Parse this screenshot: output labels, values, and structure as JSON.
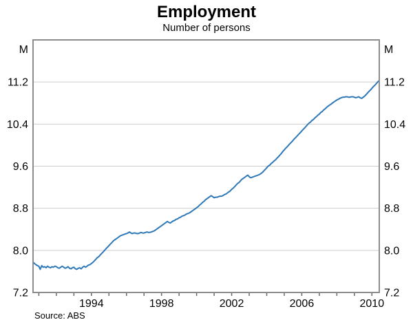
{
  "chart": {
    "title": "Employment",
    "subtitle": "Number of persons",
    "source": "Source: ABS",
    "unit_left": "M",
    "unit_right": "M"
  },
  "colors": {
    "line": "#2e78b8",
    "grid": "#cdcdcd",
    "frame": "#8c8c8c",
    "tick": "#666666",
    "text": "#000000"
  },
  "chart_data": {
    "type": "line",
    "title": "Employment",
    "subtitle": "Number of persons",
    "source": "Source: ABS",
    "ylabel": "M",
    "ylim": [
      7.2,
      12.0
    ],
    "yticks": [
      7.2,
      8.0,
      8.8,
      9.6,
      10.4,
      11.2
    ],
    "grid": "horizontal",
    "legend": "none",
    "xlim": [
      1990.67,
      2010.42
    ],
    "xticks_years": [
      1991,
      1992,
      1993,
      1994,
      1995,
      1996,
      1997,
      1998,
      1999,
      2000,
      2001,
      2002,
      2003,
      2004,
      2005,
      2006,
      2007,
      2008,
      2009,
      2010
    ],
    "xtick_labels": [
      "1994",
      "1998",
      "2002",
      "2006",
      "2010"
    ],
    "xtick_label_years": [
      1994,
      1998,
      2002,
      2006,
      2010
    ],
    "series": [
      {
        "name": "Employment, number of persons (millions)",
        "points": [
          [
            1990.67,
            7.78
          ],
          [
            1990.75,
            7.75
          ],
          [
            1990.83,
            7.73
          ],
          [
            1990.92,
            7.71
          ],
          [
            1991.0,
            7.7
          ],
          [
            1991.08,
            7.64
          ],
          [
            1991.17,
            7.71
          ],
          [
            1991.25,
            7.68
          ],
          [
            1991.33,
            7.69
          ],
          [
            1991.42,
            7.67
          ],
          [
            1991.5,
            7.7
          ],
          [
            1991.58,
            7.68
          ],
          [
            1991.67,
            7.67
          ],
          [
            1991.75,
            7.69
          ],
          [
            1991.83,
            7.68
          ],
          [
            1991.92,
            7.7
          ],
          [
            1992.0,
            7.69
          ],
          [
            1992.08,
            7.67
          ],
          [
            1992.17,
            7.66
          ],
          [
            1992.25,
            7.68
          ],
          [
            1992.33,
            7.7
          ],
          [
            1992.42,
            7.68
          ],
          [
            1992.5,
            7.66
          ],
          [
            1992.58,
            7.67
          ],
          [
            1992.67,
            7.69
          ],
          [
            1992.75,
            7.66
          ],
          [
            1992.83,
            7.65
          ],
          [
            1992.92,
            7.67
          ],
          [
            1993.0,
            7.68
          ],
          [
            1993.08,
            7.65
          ],
          [
            1993.17,
            7.64
          ],
          [
            1993.25,
            7.66
          ],
          [
            1993.33,
            7.67
          ],
          [
            1993.42,
            7.65
          ],
          [
            1993.5,
            7.68
          ],
          [
            1993.58,
            7.7
          ],
          [
            1993.67,
            7.68
          ],
          [
            1993.75,
            7.7
          ],
          [
            1993.83,
            7.72
          ],
          [
            1993.92,
            7.73
          ],
          [
            1994.0,
            7.75
          ],
          [
            1994.08,
            7.77
          ],
          [
            1994.17,
            7.8
          ],
          [
            1994.25,
            7.83
          ],
          [
            1994.33,
            7.86
          ],
          [
            1994.42,
            7.88
          ],
          [
            1994.5,
            7.91
          ],
          [
            1994.58,
            7.94
          ],
          [
            1994.67,
            7.97
          ],
          [
            1994.75,
            8.0
          ],
          [
            1994.83,
            8.03
          ],
          [
            1994.92,
            8.06
          ],
          [
            1995.0,
            8.09
          ],
          [
            1995.08,
            8.12
          ],
          [
            1995.17,
            8.15
          ],
          [
            1995.25,
            8.18
          ],
          [
            1995.33,
            8.2
          ],
          [
            1995.42,
            8.22
          ],
          [
            1995.5,
            8.24
          ],
          [
            1995.58,
            8.26
          ],
          [
            1995.67,
            8.28
          ],
          [
            1995.75,
            8.29
          ],
          [
            1995.83,
            8.3
          ],
          [
            1995.92,
            8.31
          ],
          [
            1996.0,
            8.32
          ],
          [
            1996.08,
            8.33
          ],
          [
            1996.17,
            8.35
          ],
          [
            1996.25,
            8.33
          ],
          [
            1996.33,
            8.32
          ],
          [
            1996.42,
            8.33
          ],
          [
            1996.5,
            8.33
          ],
          [
            1996.58,
            8.32
          ],
          [
            1996.67,
            8.32
          ],
          [
            1996.75,
            8.33
          ],
          [
            1996.83,
            8.34
          ],
          [
            1996.92,
            8.33
          ],
          [
            1997.0,
            8.33
          ],
          [
            1997.08,
            8.34
          ],
          [
            1997.17,
            8.35
          ],
          [
            1997.25,
            8.34
          ],
          [
            1997.33,
            8.34
          ],
          [
            1997.42,
            8.35
          ],
          [
            1997.5,
            8.36
          ],
          [
            1997.58,
            8.37
          ],
          [
            1997.67,
            8.39
          ],
          [
            1997.75,
            8.41
          ],
          [
            1997.83,
            8.43
          ],
          [
            1997.92,
            8.45
          ],
          [
            1998.0,
            8.47
          ],
          [
            1998.08,
            8.49
          ],
          [
            1998.17,
            8.51
          ],
          [
            1998.25,
            8.53
          ],
          [
            1998.33,
            8.55
          ],
          [
            1998.42,
            8.53
          ],
          [
            1998.5,
            8.52
          ],
          [
            1998.58,
            8.54
          ],
          [
            1998.67,
            8.56
          ],
          [
            1998.75,
            8.57
          ],
          [
            1998.83,
            8.59
          ],
          [
            1998.92,
            8.6
          ],
          [
            1999.0,
            8.62
          ],
          [
            1999.08,
            8.63
          ],
          [
            1999.17,
            8.65
          ],
          [
            1999.25,
            8.66
          ],
          [
            1999.33,
            8.67
          ],
          [
            1999.42,
            8.69
          ],
          [
            1999.5,
            8.7
          ],
          [
            1999.58,
            8.71
          ],
          [
            1999.67,
            8.73
          ],
          [
            1999.75,
            8.75
          ],
          [
            1999.83,
            8.77
          ],
          [
            1999.92,
            8.79
          ],
          [
            2000.0,
            8.81
          ],
          [
            2000.08,
            8.83
          ],
          [
            2000.17,
            8.86
          ],
          [
            2000.25,
            8.88
          ],
          [
            2000.33,
            8.91
          ],
          [
            2000.42,
            8.93
          ],
          [
            2000.5,
            8.96
          ],
          [
            2000.58,
            8.98
          ],
          [
            2000.67,
            9.0
          ],
          [
            2000.75,
            9.02
          ],
          [
            2000.83,
            9.04
          ],
          [
            2000.92,
            9.02
          ],
          [
            2001.0,
            9.0
          ],
          [
            2001.08,
            9.01
          ],
          [
            2001.17,
            9.01
          ],
          [
            2001.25,
            9.02
          ],
          [
            2001.33,
            9.03
          ],
          [
            2001.42,
            9.03
          ],
          [
            2001.5,
            9.04
          ],
          [
            2001.58,
            9.06
          ],
          [
            2001.67,
            9.07
          ],
          [
            2001.75,
            9.09
          ],
          [
            2001.83,
            9.11
          ],
          [
            2001.92,
            9.13
          ],
          [
            2002.0,
            9.16
          ],
          [
            2002.08,
            9.18
          ],
          [
            2002.17,
            9.21
          ],
          [
            2002.25,
            9.24
          ],
          [
            2002.33,
            9.27
          ],
          [
            2002.42,
            9.29
          ],
          [
            2002.5,
            9.32
          ],
          [
            2002.58,
            9.35
          ],
          [
            2002.67,
            9.37
          ],
          [
            2002.75,
            9.39
          ],
          [
            2002.83,
            9.41
          ],
          [
            2002.92,
            9.43
          ],
          [
            2003.0,
            9.4
          ],
          [
            2003.08,
            9.38
          ],
          [
            2003.17,
            9.39
          ],
          [
            2003.25,
            9.4
          ],
          [
            2003.33,
            9.41
          ],
          [
            2003.42,
            9.42
          ],
          [
            2003.5,
            9.43
          ],
          [
            2003.58,
            9.44
          ],
          [
            2003.67,
            9.46
          ],
          [
            2003.75,
            9.48
          ],
          [
            2003.83,
            9.51
          ],
          [
            2003.92,
            9.54
          ],
          [
            2004.0,
            9.57
          ],
          [
            2004.08,
            9.6
          ],
          [
            2004.17,
            9.62
          ],
          [
            2004.25,
            9.65
          ],
          [
            2004.33,
            9.67
          ],
          [
            2004.42,
            9.7
          ],
          [
            2004.5,
            9.72
          ],
          [
            2004.58,
            9.75
          ],
          [
            2004.67,
            9.78
          ],
          [
            2004.75,
            9.81
          ],
          [
            2004.83,
            9.84
          ],
          [
            2004.92,
            9.88
          ],
          [
            2005.0,
            9.91
          ],
          [
            2005.08,
            9.94
          ],
          [
            2005.17,
            9.97
          ],
          [
            2005.25,
            10.0
          ],
          [
            2005.33,
            10.03
          ],
          [
            2005.42,
            10.06
          ],
          [
            2005.5,
            10.09
          ],
          [
            2005.58,
            10.12
          ],
          [
            2005.67,
            10.15
          ],
          [
            2005.75,
            10.18
          ],
          [
            2005.83,
            10.21
          ],
          [
            2005.92,
            10.24
          ],
          [
            2006.0,
            10.27
          ],
          [
            2006.08,
            10.3
          ],
          [
            2006.17,
            10.33
          ],
          [
            2006.25,
            10.36
          ],
          [
            2006.33,
            10.39
          ],
          [
            2006.42,
            10.42
          ],
          [
            2006.5,
            10.44
          ],
          [
            2006.58,
            10.47
          ],
          [
            2006.67,
            10.49
          ],
          [
            2006.75,
            10.52
          ],
          [
            2006.83,
            10.54
          ],
          [
            2006.92,
            10.57
          ],
          [
            2007.0,
            10.59
          ],
          [
            2007.08,
            10.62
          ],
          [
            2007.17,
            10.64
          ],
          [
            2007.25,
            10.67
          ],
          [
            2007.33,
            10.69
          ],
          [
            2007.42,
            10.72
          ],
          [
            2007.5,
            10.74
          ],
          [
            2007.58,
            10.76
          ],
          [
            2007.67,
            10.78
          ],
          [
            2007.75,
            10.8
          ],
          [
            2007.83,
            10.82
          ],
          [
            2007.92,
            10.84
          ],
          [
            2008.0,
            10.86
          ],
          [
            2008.08,
            10.87
          ],
          [
            2008.17,
            10.89
          ],
          [
            2008.25,
            10.9
          ],
          [
            2008.33,
            10.91
          ],
          [
            2008.42,
            10.91
          ],
          [
            2008.5,
            10.92
          ],
          [
            2008.58,
            10.92
          ],
          [
            2008.67,
            10.91
          ],
          [
            2008.75,
            10.91
          ],
          [
            2008.83,
            10.92
          ],
          [
            2008.92,
            10.92
          ],
          [
            2009.0,
            10.91
          ],
          [
            2009.08,
            10.9
          ],
          [
            2009.17,
            10.91
          ],
          [
            2009.25,
            10.92
          ],
          [
            2009.33,
            10.9
          ],
          [
            2009.42,
            10.89
          ],
          [
            2009.5,
            10.91
          ],
          [
            2009.58,
            10.93
          ],
          [
            2009.67,
            10.96
          ],
          [
            2009.75,
            10.99
          ],
          [
            2009.83,
            11.02
          ],
          [
            2009.92,
            11.05
          ],
          [
            2010.0,
            11.08
          ],
          [
            2010.08,
            11.11
          ],
          [
            2010.17,
            11.14
          ],
          [
            2010.25,
            11.17
          ],
          [
            2010.33,
            11.2
          ],
          [
            2010.42,
            11.23
          ]
        ]
      }
    ]
  }
}
